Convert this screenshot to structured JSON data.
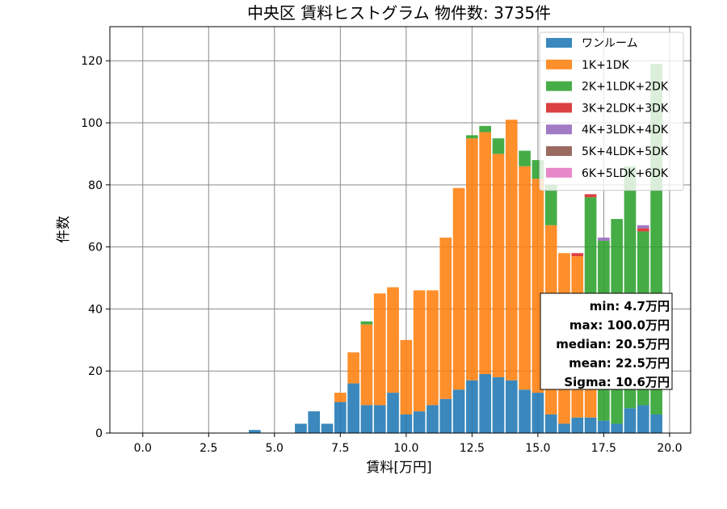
{
  "chart_data": {
    "type": "bar",
    "stacked": true,
    "title": "中央区 賃料ヒストグラム 物件数: 3735件",
    "xlabel": "賃料[万円]",
    "ylabel": "件数",
    "xlim": [
      -1.25,
      20.8
    ],
    "ylim": [
      0,
      131
    ],
    "xticks": [
      0.0,
      2.5,
      5.0,
      7.5,
      10.0,
      12.5,
      15.0,
      17.5,
      20.0
    ],
    "xtick_labels": [
      "0.0",
      "2.5",
      "5.0",
      "7.5",
      "10.0",
      "12.5",
      "15.0",
      "17.5",
      "20.0"
    ],
    "yticks": [
      0,
      20,
      40,
      60,
      80,
      100,
      120
    ],
    "ytick_labels": [
      "0",
      "20",
      "40",
      "60",
      "80",
      "100",
      "120"
    ],
    "grid": true,
    "legend_position": "top-right",
    "bin_width": 0.5,
    "bin_centers": [
      4.25,
      6.0,
      6.5,
      7.0,
      7.5,
      8.0,
      8.5,
      9.0,
      9.5,
      10.0,
      10.5,
      11.0,
      11.5,
      12.0,
      12.5,
      13.0,
      13.5,
      14.0,
      14.5,
      15.0,
      15.5,
      16.0,
      16.5,
      17.0,
      17.5,
      18.0,
      18.5,
      19.0,
      19.5
    ],
    "series": [
      {
        "name": "ワンルーム",
        "color": "#1f77b4",
        "values": [
          1,
          3,
          7,
          3,
          10,
          16,
          9,
          9,
          13,
          6,
          7,
          9,
          11,
          14,
          17,
          19,
          18,
          17,
          14,
          13,
          6,
          3,
          5,
          5,
          4,
          3,
          8,
          9,
          6
        ]
      },
      {
        "name": "1K+1DK",
        "color": "#ff7f0e",
        "values": [
          0,
          0,
          0,
          0,
          3,
          10,
          26,
          36,
          34,
          24,
          39,
          37,
          52,
          65,
          78,
          78,
          72,
          84,
          72,
          69,
          61,
          55,
          52,
          36,
          0,
          0,
          0,
          0,
          0
        ]
      },
      {
        "name": "2K+1LDK+2DK",
        "color": "#2ca02c",
        "values": [
          0,
          0,
          0,
          0,
          0,
          0,
          1,
          0,
          0,
          0,
          0,
          0,
          0,
          0,
          1,
          2,
          5,
          0,
          5,
          6,
          13,
          0,
          0,
          35,
          58,
          66,
          78,
          56,
          113
        ]
      },
      {
        "name": "3K+2LDK+3DK",
        "color": "#d62728",
        "values": [
          0,
          0,
          0,
          0,
          0,
          0,
          0,
          0,
          0,
          0,
          0,
          0,
          0,
          0,
          0,
          0,
          0,
          0,
          0,
          0,
          0,
          0,
          1,
          1,
          0,
          0,
          0,
          1,
          0
        ]
      },
      {
        "name": "4K+3LDK+4DK",
        "color": "#9467bd",
        "values": [
          0,
          0,
          0,
          0,
          0,
          0,
          0,
          0,
          0,
          0,
          0,
          0,
          0,
          0,
          0,
          0,
          0,
          0,
          0,
          0,
          0,
          0,
          0,
          0,
          1,
          0,
          0,
          1,
          0
        ]
      },
      {
        "name": "5K+4LDK+5DK",
        "color": "#8c564b",
        "values": [
          0,
          0,
          0,
          0,
          0,
          0,
          0,
          0,
          0,
          0,
          0,
          0,
          0,
          0,
          0,
          0,
          0,
          0,
          0,
          0,
          0,
          0,
          0,
          0,
          0,
          0,
          0,
          0,
          0
        ]
      },
      {
        "name": "6K+5LDK+6DK",
        "color": "#e377c2",
        "values": [
          0,
          0,
          0,
          0,
          0,
          0,
          0,
          0,
          0,
          0,
          0,
          0,
          0,
          0,
          0,
          0,
          0,
          0,
          0,
          0,
          0,
          0,
          0,
          0,
          0,
          0,
          0,
          0,
          0
        ]
      }
    ],
    "stats": [
      "min: 4.7万円",
      "max: 100.0万円",
      "median: 20.5万円",
      "mean: 22.5万円",
      "Sigma: 10.6万円"
    ]
  }
}
